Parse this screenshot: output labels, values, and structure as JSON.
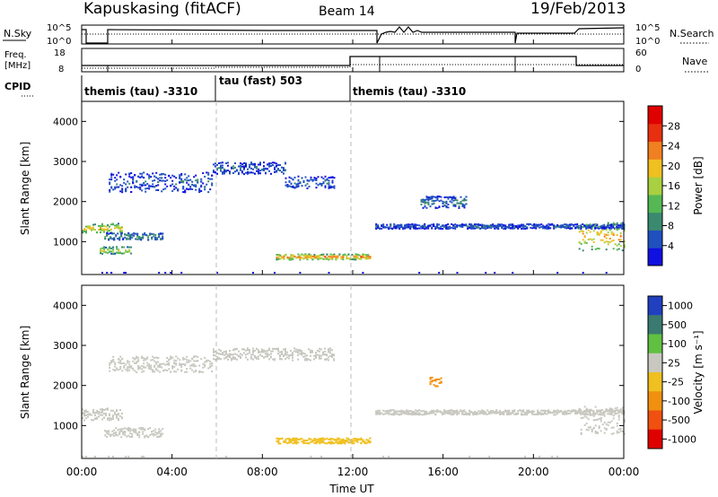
{
  "header": {
    "station": "Kapuskasing (fitACF)",
    "beam": "Beam 14",
    "date": "19/Feb/2013"
  },
  "noise_panel": {
    "left_label": "N.Sky",
    "left_ticks": [
      "10^5",
      "10^0"
    ],
    "right_ticks": [
      "10^5",
      "10^0"
    ],
    "right_label": "N.Search"
  },
  "freq_panel": {
    "left_label_1": "Freq.",
    "left_label_2": "[MHz]",
    "left_ticks": [
      "18",
      "8"
    ],
    "right_ticks": [
      "60",
      "0"
    ],
    "right_label": "Nave"
  },
  "cpid": {
    "label": "CPID",
    "segments": [
      {
        "name": "themis (tau) -3310",
        "start_h": 0,
        "end_h": 6
      },
      {
        "name": "tau (fast) 503",
        "start_h": 6,
        "end_h": 12
      },
      {
        "name": "themis (tau) -3310",
        "start_h": 12,
        "end_h": 24
      }
    ]
  },
  "power_colorbar": {
    "label": "Power [dB]",
    "ticks": [
      "28",
      "24",
      "20",
      "16",
      "12",
      "8",
      "4"
    ],
    "colors": [
      "#1010e0",
      "#2050c0",
      "#3a8a70",
      "#55b855",
      "#a8d040",
      "#f0c020",
      "#f08020",
      "#e83010",
      "#e00000"
    ]
  },
  "velocity_colorbar": {
    "label": "Velocity [m s⁻¹]",
    "ticks": [
      "1000",
      "500",
      "100",
      "25",
      "-25",
      "-100",
      "-500",
      "-1000"
    ],
    "colors": [
      "#2040c0",
      "#3a7a70",
      "#60c040",
      "#c8c8c0",
      "#f0c020",
      "#f09010",
      "#f05010",
      "#e00000"
    ]
  },
  "x_axis": {
    "label": "Time UT",
    "ticks": [
      "00:00",
      "04:00",
      "08:00",
      "12:00",
      "16:00",
      "20:00",
      "00:00"
    ]
  },
  "chart_data": {
    "type": "heatmap",
    "title": "Kapuskasing (fitACF)   Beam 14   19/Feb/2013",
    "xlabel": "Time UT",
    "ylabel": "Slant Range [km]",
    "xlim_hours": [
      0,
      24
    ],
    "ylim_km": [
      180,
      4500
    ],
    "y_ticks_km": [
      1000,
      2000,
      3000,
      4000
    ],
    "panels": [
      {
        "name": "Power",
        "unit": "dB",
        "features": [
          {
            "start_h": 0.0,
            "end_h": 1.8,
            "center_km": 1350,
            "half_width_km": 120,
            "value": 20
          },
          {
            "start_h": 1.0,
            "end_h": 3.6,
            "center_km": 1150,
            "half_width_km": 90,
            "value": 10
          },
          {
            "start_h": 0.8,
            "end_h": 2.2,
            "center_km": 800,
            "half_width_km": 90,
            "value": 18
          },
          {
            "start_h": 1.2,
            "end_h": 5.8,
            "center_km": 2500,
            "half_width_km": 250,
            "value": 6
          },
          {
            "start_h": 5.8,
            "end_h": 9.0,
            "center_km": 2850,
            "half_width_km": 150,
            "value": 6
          },
          {
            "start_h": 9.0,
            "end_h": 11.2,
            "center_km": 2500,
            "half_width_km": 150,
            "value": 6
          },
          {
            "start_h": 8.6,
            "end_h": 12.8,
            "center_km": 640,
            "half_width_km": 70,
            "value": 24
          },
          {
            "start_h": 13.0,
            "end_h": 24.0,
            "center_km": 1400,
            "half_width_km": 60,
            "value": 6
          },
          {
            "start_h": 15.0,
            "end_h": 17.0,
            "center_km": 2000,
            "half_width_km": 150,
            "value": 8
          },
          {
            "start_h": 22.0,
            "end_h": 24.0,
            "center_km": 1150,
            "half_width_km": 350,
            "value": 22
          }
        ]
      },
      {
        "name": "Velocity",
        "unit": "m s^-1",
        "features": [
          {
            "start_h": 0.0,
            "end_h": 1.8,
            "center_km": 1300,
            "half_width_km": 150,
            "value": 0
          },
          {
            "start_h": 1.0,
            "end_h": 3.6,
            "center_km": 850,
            "half_width_km": 120,
            "value": 0
          },
          {
            "start_h": 1.2,
            "end_h": 5.8,
            "center_km": 2550,
            "half_width_km": 200,
            "value": 0
          },
          {
            "start_h": 5.8,
            "end_h": 11.2,
            "center_km": 2800,
            "half_width_km": 150,
            "value": 0
          },
          {
            "start_h": 8.6,
            "end_h": 12.8,
            "center_km": 640,
            "half_width_km": 70,
            "value": -80
          },
          {
            "start_h": 13.0,
            "end_h": 24.0,
            "center_km": 1350,
            "half_width_km": 60,
            "value": 0
          },
          {
            "start_h": 15.4,
            "end_h": 15.9,
            "center_km": 2100,
            "half_width_km": 120,
            "value": -300
          },
          {
            "start_h": 22.0,
            "end_h": 24.0,
            "center_km": 1150,
            "half_width_km": 350,
            "value": 0
          }
        ]
      }
    ]
  }
}
